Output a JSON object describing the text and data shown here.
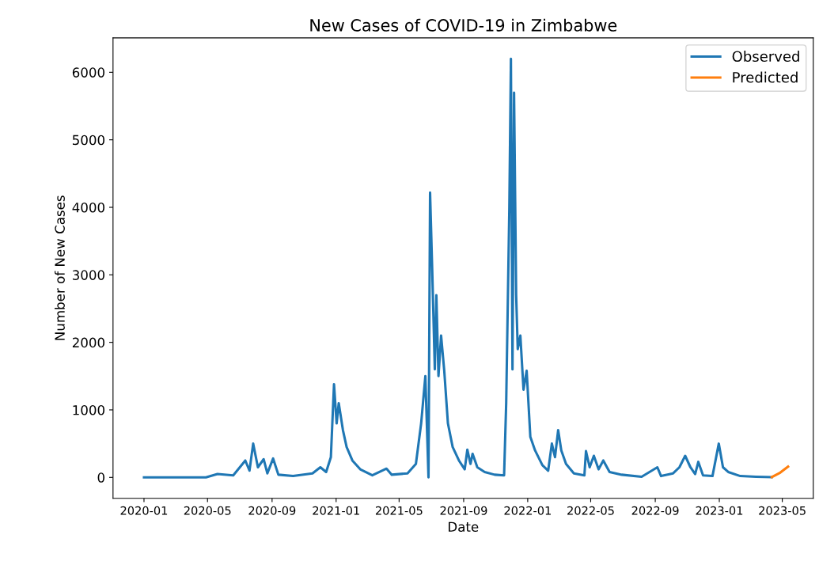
{
  "chart_data": {
    "type": "line",
    "title": "New Cases of COVID-19 in Zimbabwe",
    "xlabel": "Date",
    "ylabel": "Number of New Cases",
    "xlim": [
      "2019-11-03",
      "2023-06-29"
    ],
    "xticks": [
      {
        "value": "2020-01-01",
        "label": "2020-01"
      },
      {
        "value": "2020-05-01",
        "label": "2020-05"
      },
      {
        "value": "2020-09-01",
        "label": "2020-09"
      },
      {
        "value": "2021-01-01",
        "label": "2021-01"
      },
      {
        "value": "2021-05-01",
        "label": "2021-05"
      },
      {
        "value": "2021-09-01",
        "label": "2021-09"
      },
      {
        "value": "2022-01-01",
        "label": "2022-01"
      },
      {
        "value": "2022-05-01",
        "label": "2022-05"
      },
      {
        "value": "2022-09-01",
        "label": "2022-09"
      },
      {
        "value": "2023-01-01",
        "label": "2023-01"
      },
      {
        "value": "2023-05-01",
        "label": "2023-05"
      }
    ],
    "ylim": [
      -310,
      6510
    ],
    "yticks": [
      0,
      1000,
      2000,
      3000,
      4000,
      5000,
      6000
    ],
    "legend": "top right",
    "grid": false,
    "series": [
      {
        "name": "Observed",
        "color": "#1f77b4",
        "x": [
          "2020-01-01",
          "2020-04-28",
          "2020-05-20",
          "2020-06-19",
          "2020-07-12",
          "2020-07-20",
          "2020-07-27",
          "2020-08-05",
          "2020-08-16",
          "2020-08-23",
          "2020-09-03",
          "2020-09-13",
          "2020-10-11",
          "2020-11-17",
          "2020-12-02",
          "2020-12-13",
          "2020-12-22",
          "2020-12-28",
          "2021-01-02",
          "2021-01-06",
          "2021-01-14",
          "2021-01-21",
          "2021-02-01",
          "2021-02-16",
          "2021-03-11",
          "2021-04-07",
          "2021-04-17",
          "2021-05-17",
          "2021-06-02",
          "2021-06-12",
          "2021-06-20",
          "2021-06-26",
          "2021-06-29",
          "2021-07-03",
          "2021-07-08",
          "2021-07-11",
          "2021-07-15",
          "2021-07-20",
          "2021-07-26",
          "2021-08-02",
          "2021-08-11",
          "2021-08-23",
          "2021-09-03",
          "2021-09-08",
          "2021-09-14",
          "2021-09-18",
          "2021-09-27",
          "2021-10-11",
          "2021-10-30",
          "2021-11-17",
          "2021-11-21",
          "2021-11-27",
          "2021-11-30",
          "2021-12-03",
          "2021-12-06",
          "2021-12-10",
          "2021-12-13",
          "2021-12-18",
          "2021-12-24",
          "2021-12-30",
          "2022-01-06",
          "2022-01-15",
          "2022-01-29",
          "2022-02-09",
          "2022-02-16",
          "2022-02-22",
          "2022-02-28",
          "2022-03-06",
          "2022-03-15",
          "2022-03-30",
          "2022-04-19",
          "2022-04-22",
          "2022-04-29",
          "2022-05-07",
          "2022-05-16",
          "2022-05-25",
          "2022-06-06",
          "2022-06-29",
          "2022-08-06",
          "2022-09-05",
          "2022-09-12",
          "2022-10-05",
          "2022-10-17",
          "2022-10-28",
          "2022-11-07",
          "2022-11-16",
          "2022-11-22",
          "2022-12-01",
          "2022-12-19",
          "2022-12-31",
          "2023-01-08",
          "2023-01-18",
          "2023-02-10",
          "2023-03-12",
          "2023-04-11"
        ],
        "values": [
          0,
          0,
          50,
          30,
          250,
          100,
          500,
          150,
          270,
          60,
          280,
          40,
          20,
          60,
          150,
          80,
          300,
          1380,
          800,
          1100,
          700,
          450,
          250,
          120,
          30,
          130,
          40,
          60,
          200,
          800,
          1500,
          0,
          4220,
          3100,
          1600,
          2700,
          1500,
          2100,
          1580,
          800,
          450,
          250,
          120,
          410,
          200,
          350,
          150,
          80,
          40,
          30,
          1100,
          4000,
          6200,
          1600,
          5700,
          2700,
          1900,
          2100,
          1300,
          1580,
          600,
          400,
          180,
          100,
          500,
          300,
          700,
          400,
          200,
          60,
          30,
          390,
          150,
          320,
          120,
          250,
          80,
          40,
          10,
          150,
          20,
          60,
          150,
          320,
          150,
          50,
          230,
          30,
          20,
          500,
          150,
          80,
          20,
          10,
          5
        ]
      },
      {
        "name": "Predicted",
        "color": "#ff7f0e",
        "x": [
          "2023-04-11",
          "2023-04-27",
          "2023-05-12"
        ],
        "values": [
          5,
          70,
          160
        ]
      }
    ]
  }
}
